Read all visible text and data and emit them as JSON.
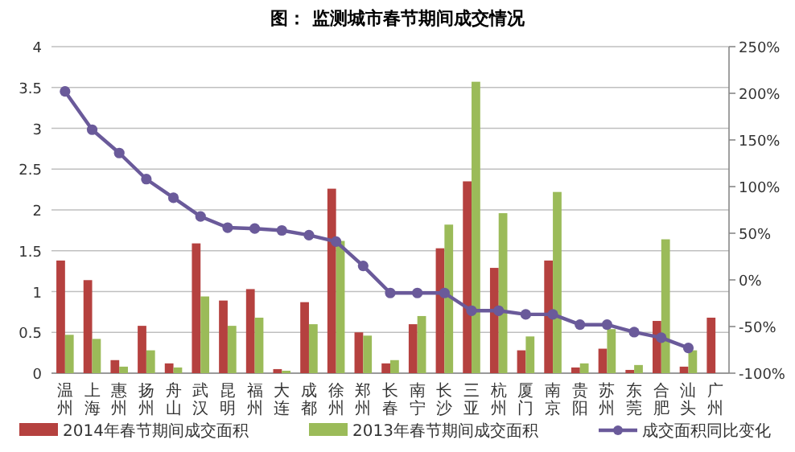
{
  "chart_data": {
    "type": "bar",
    "title": "图： 监测城市春节期间成交情况",
    "categories": [
      "温州",
      "上海",
      "惠州",
      "扬州",
      "舟山",
      "武汉",
      "昆明",
      "福州",
      "大连",
      "成都",
      "徐州",
      "郑州",
      "长春",
      "南宁",
      "长沙",
      "三亚",
      "杭州",
      "厦门",
      "南京",
      "贵阳",
      "苏州",
      "东莞",
      "合肥",
      "汕头",
      "广州"
    ],
    "series": [
      {
        "name": "2014年春节期间成交面积",
        "color": "#b5413f",
        "values": [
          1.38,
          1.14,
          0.16,
          0.58,
          0.12,
          1.59,
          0.89,
          1.03,
          0.05,
          0.87,
          2.26,
          0.5,
          0.12,
          0.6,
          1.53,
          2.35,
          1.29,
          0.28,
          1.38,
          0.07,
          0.3,
          0.04,
          0.64,
          0.08,
          0.68
        ]
      },
      {
        "name": "2013年春节期间成交面积",
        "color": "#9bbb59",
        "values": [
          0.47,
          0.42,
          0.08,
          0.28,
          0.07,
          0.94,
          0.58,
          0.68,
          0.03,
          0.6,
          1.62,
          0.46,
          0.16,
          0.7,
          1.82,
          3.57,
          1.96,
          0.45,
          2.22,
          0.12,
          0.54,
          0.1,
          1.64,
          0.28,
          null
        ]
      },
      {
        "name": "成交面积同比变化",
        "type": "line",
        "axis": "y2",
        "color": "#6a5a9a",
        "values": [
          202,
          161,
          136,
          108,
          88,
          68,
          56,
          55,
          53,
          48,
          41,
          15,
          -14,
          -14,
          -14,
          -33,
          -33,
          -37,
          -37,
          -48,
          -48,
          -56,
          -62,
          -73,
          null
        ]
      }
    ],
    "ylim": [
      0,
      4
    ],
    "yticks": [
      0,
      0.5,
      1,
      1.5,
      2,
      2.5,
      3,
      3.5,
      4
    ],
    "y2lim": [
      -100,
      250
    ],
    "y2ticks": [
      {
        "value": -100,
        "label": "-100%"
      },
      {
        "value": -50,
        "label": "-50%"
      },
      {
        "value": 0,
        "label": "0%"
      },
      {
        "value": 50,
        "label": "50%"
      },
      {
        "value": 100,
        "label": "100%"
      },
      {
        "value": 150,
        "label": "150%"
      },
      {
        "value": 200,
        "label": "200%"
      },
      {
        "value": 250,
        "label": "250%"
      }
    ],
    "grid": "y",
    "legend": "bottom",
    "marker": "circle"
  }
}
